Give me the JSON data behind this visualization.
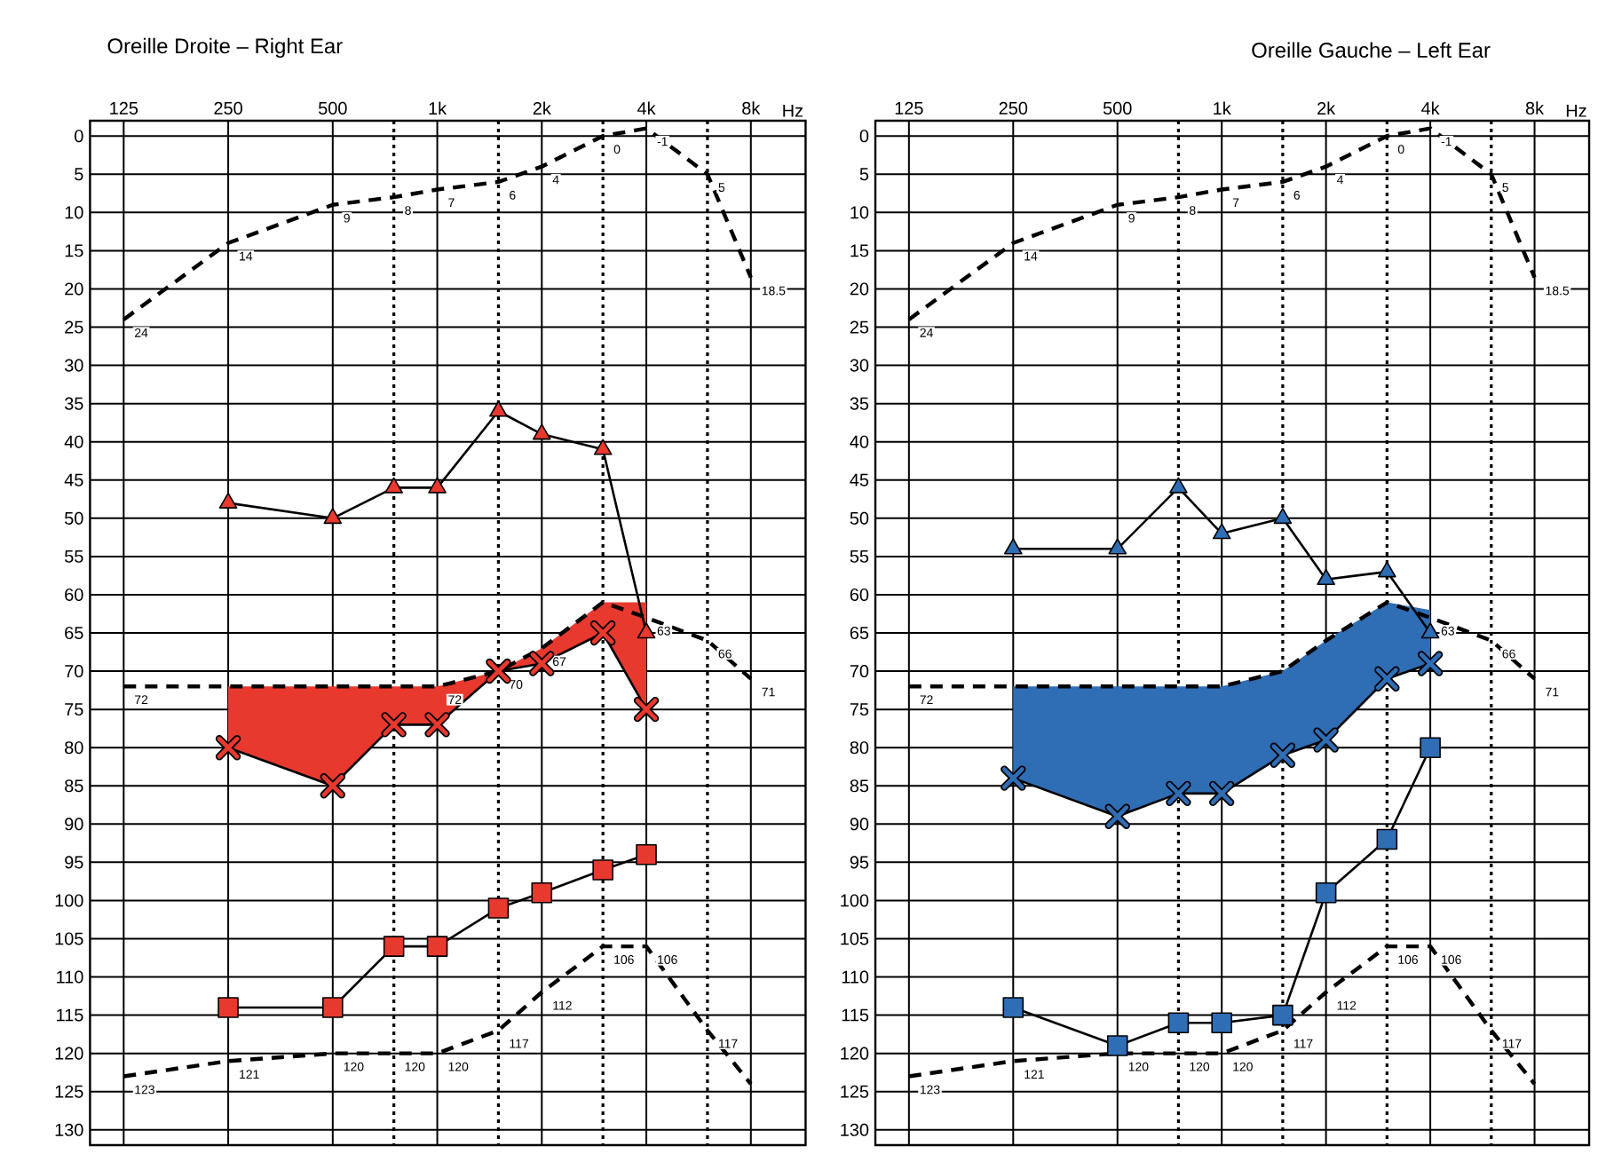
{
  "chart_data": [
    {
      "type": "line",
      "title": "Oreille Droite – Right Ear",
      "xlabel": "Hz",
      "log": "x",
      "grid": true,
      "xlim": [
        100,
        11500
      ],
      "ylim": [
        132,
        -2
      ],
      "xticks": [
        125,
        250,
        500,
        {
          "value": 750,
          "label": null
        },
        {
          "value": 1000,
          "label": "1k"
        },
        {
          "value": 1500,
          "label": null
        },
        {
          "value": 2000,
          "label": "2k"
        },
        {
          "value": 3000,
          "label": null
        },
        {
          "value": 4000,
          "label": "4k"
        },
        {
          "value": 6000,
          "label": null
        },
        {
          "value": 8000,
          "label": "8k"
        }
      ],
      "yticks": [
        0,
        5,
        10,
        15,
        20,
        25,
        30,
        35,
        40,
        45,
        50,
        55,
        60,
        65,
        70,
        75,
        80,
        85,
        90,
        95,
        100,
        105,
        110,
        115,
        120,
        125,
        130
      ],
      "series": [
        {
          "color": "#000000",
          "marker": "none",
          "line_style": "dashed",
          "x": [
            125,
            250,
            500,
            750,
            1000,
            1500,
            2000,
            3000,
            4000,
            6000,
            8000
          ],
          "values": [
            24,
            14,
            9,
            8,
            7,
            6,
            4,
            0,
            -1,
            5,
            18.5
          ],
          "value_labels": [
            "24",
            "14",
            "9",
            "8",
            "7",
            "6",
            "4",
            "0",
            "-1",
            "5",
            "18.5"
          ]
        },
        {
          "color": "#000000",
          "marker": "none",
          "line_style": "dashed",
          "x": [
            125,
            250,
            500,
            750,
            1000,
            1500,
            2000,
            3000,
            4000,
            6000,
            8000
          ],
          "values": [
            72,
            72,
            72,
            72,
            72,
            70,
            67,
            61,
            63,
            66,
            71
          ],
          "value_labels": [
            "72",
            null,
            null,
            null,
            "72",
            "70",
            "67",
            null,
            "63",
            "66",
            "71"
          ]
        },
        {
          "color": "#000000",
          "marker": "none",
          "line_style": "dashed",
          "x": [
            125,
            250,
            500,
            750,
            1000,
            1500,
            2000,
            3000,
            4000,
            6000,
            8000
          ],
          "values": [
            123,
            121,
            120,
            120,
            120,
            117,
            112,
            106,
            106,
            117,
            124
          ],
          "value_labels": [
            "123",
            "121",
            "120",
            "120",
            "120",
            "117",
            "112",
            "106",
            "106",
            "117",
            null
          ]
        },
        {
          "color": "#e8392e",
          "marker": "triangle",
          "line_style": "solid",
          "x": [
            250,
            500,
            750,
            1000,
            1500,
            2000,
            3000,
            4000
          ],
          "values": [
            48,
            50,
            46,
            46,
            36,
            39,
            41,
            65
          ]
        },
        {
          "color": "#e8392e",
          "marker": "cross",
          "line_style": "solid",
          "x": [
            250,
            500,
            750,
            1000,
            1500,
            2000,
            3000,
            4000
          ],
          "values": [
            80,
            85,
            77,
            77,
            70,
            69,
            65,
            75
          ],
          "lower": [
            72,
            72,
            72,
            72,
            70,
            67,
            61,
            61
          ],
          "upper": [
            80,
            85,
            77,
            77,
            70,
            69,
            65,
            75
          ]
        },
        {
          "color": "#e8392e",
          "marker": "square",
          "line_style": "solid",
          "x": [
            250,
            500,
            750,
            1000,
            1500,
            2000,
            3000,
            4000
          ],
          "values": [
            114,
            114,
            106,
            106,
            101,
            99,
            96,
            94
          ]
        }
      ]
    },
    {
      "type": "line",
      "title": "Oreille Gauche – Left Ear",
      "xlabel": "Hz",
      "log": "x",
      "grid": true,
      "xlim": [
        100,
        11500
      ],
      "ylim": [
        132,
        -2
      ],
      "xticks": [
        125,
        250,
        500,
        {
          "value": 750,
          "label": null
        },
        {
          "value": 1000,
          "label": "1k"
        },
        {
          "value": 1500,
          "label": null
        },
        {
          "value": 2000,
          "label": "2k"
        },
        {
          "value": 3000,
          "label": null
        },
        {
          "value": 4000,
          "label": "4k"
        },
        {
          "value": 6000,
          "label": null
        },
        {
          "value": 8000,
          "label": "8k"
        }
      ],
      "yticks": [
        0,
        5,
        10,
        15,
        20,
        25,
        30,
        35,
        40,
        45,
        50,
        55,
        60,
        65,
        70,
        75,
        80,
        85,
        90,
        95,
        100,
        105,
        110,
        115,
        120,
        125,
        130
      ],
      "series": [
        {
          "color": "#000000",
          "marker": "none",
          "line_style": "dashed",
          "x": [
            125,
            250,
            500,
            750,
            1000,
            1500,
            2000,
            3000,
            4000,
            6000,
            8000
          ],
          "values": [
            24,
            14,
            9,
            8,
            7,
            6,
            4,
            0,
            -1,
            5,
            18.5
          ],
          "value_labels": [
            "24",
            "14",
            "9",
            "8",
            "7",
            "6",
            "4",
            "0",
            "-1",
            "5",
            "18.5"
          ]
        },
        {
          "color": "#000000",
          "marker": "none",
          "line_style": "dashed",
          "x": [
            125,
            250,
            500,
            750,
            1000,
            1500,
            2000,
            3000,
            4000,
            6000,
            8000
          ],
          "values": [
            72,
            72,
            72,
            72,
            72,
            70,
            66,
            61,
            63,
            66,
            71
          ],
          "value_labels": [
            "72",
            null,
            null,
            null,
            null,
            null,
            null,
            null,
            "63",
            "66",
            "71"
          ]
        },
        {
          "color": "#000000",
          "marker": "none",
          "line_style": "dashed",
          "x": [
            125,
            250,
            500,
            750,
            1000,
            1500,
            2000,
            3000,
            4000,
            6000,
            8000
          ],
          "values": [
            123,
            121,
            120,
            120,
            120,
            117,
            112,
            106,
            106,
            117,
            124
          ],
          "value_labels": [
            "123",
            "121",
            "120",
            "120",
            "120",
            "117",
            "112",
            "106",
            "106",
            "117",
            null
          ]
        },
        {
          "color": "#2f6db5",
          "marker": "triangle",
          "line_style": "solid",
          "x": [
            250,
            500,
            750,
            1000,
            1500,
            2000,
            3000,
            4000
          ],
          "values": [
            54,
            54,
            46,
            52,
            50,
            58,
            57,
            65
          ]
        },
        {
          "color": "#2f6db5",
          "marker": "cross",
          "line_style": "solid",
          "x": [
            250,
            500,
            750,
            1000,
            1500,
            2000,
            3000,
            4000
          ],
          "values": [
            84,
            89,
            86,
            86,
            81,
            79,
            71,
            69
          ],
          "lower": [
            72,
            72,
            72,
            72,
            70,
            66,
            61,
            62
          ],
          "upper": [
            84,
            89,
            86,
            86,
            81,
            79,
            71,
            69
          ]
        },
        {
          "color": "#2f6db5",
          "marker": "square",
          "line_style": "solid",
          "x": [
            250,
            500,
            750,
            1000,
            1500,
            2000,
            3000,
            4000
          ],
          "values": [
            114,
            119,
            116,
            116,
            115,
            99,
            92,
            80
          ]
        }
      ]
    }
  ]
}
